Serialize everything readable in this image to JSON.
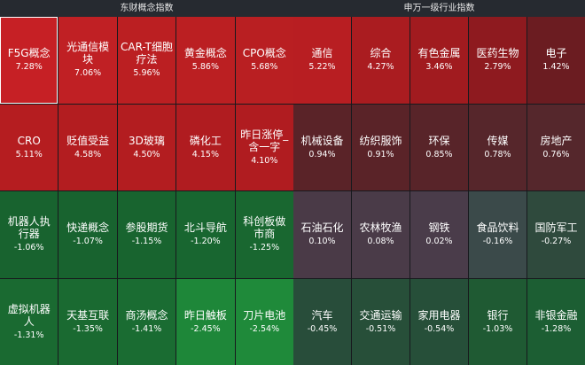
{
  "left_panel": {
    "title": "东财概念指数",
    "tiles": [
      {
        "name": "F5G概念",
        "pct": "7.28%",
        "color": "#c62025",
        "selected": true
      },
      {
        "name": "光通信模块",
        "pct": "7.06%",
        "color": "#c02024"
      },
      {
        "name": "CAR-T细胞疗法",
        "pct": "5.96%",
        "color": "#bb1f22"
      },
      {
        "name": "黄金概念",
        "pct": "5.86%",
        "color": "#bb1f22"
      },
      {
        "name": "CPO概念",
        "pct": "5.68%",
        "color": "#b91f22"
      },
      {
        "name": "CRO",
        "pct": "5.11%",
        "color": "#b51d20"
      },
      {
        "name": "贬值受益",
        "pct": "4.58%",
        "color": "#b31d20"
      },
      {
        "name": "3D玻璃",
        "pct": "4.50%",
        "color": "#b31d20"
      },
      {
        "name": "磷化工",
        "pct": "4.15%",
        "color": "#b01c20"
      },
      {
        "name": "昨日涨停_含一字",
        "pct": "4.10%",
        "color": "#b01c20"
      },
      {
        "name": "机器人执行器",
        "pct": "-1.06%",
        "color": "#18632f"
      },
      {
        "name": "快递概念",
        "pct": "-1.07%",
        "color": "#18632f"
      },
      {
        "name": "参股期货",
        "pct": "-1.15%",
        "color": "#18642f"
      },
      {
        "name": "北斗导航",
        "pct": "-1.20%",
        "color": "#186630"
      },
      {
        "name": "科创板做市商",
        "pct": "-1.25%",
        "color": "#196730"
      },
      {
        "name": "虚拟机器人",
        "pct": "-1.31%",
        "color": "#1a6a31"
      },
      {
        "name": "天基互联",
        "pct": "-1.35%",
        "color": "#1a6a31"
      },
      {
        "name": "商汤概念",
        "pct": "-1.41%",
        "color": "#1a6c32"
      },
      {
        "name": "昨日触板",
        "pct": "-2.45%",
        "color": "#1e8739"
      },
      {
        "name": "刀片电池",
        "pct": "-2.54%",
        "color": "#1f8a3a"
      }
    ]
  },
  "right_panel": {
    "title": "申万一级行业指数",
    "tiles": [
      {
        "name": "通信",
        "pct": "5.22%",
        "color": "#b81e22"
      },
      {
        "name": "综合",
        "pct": "4.27%",
        "color": "#aa1c20"
      },
      {
        "name": "有色金属",
        "pct": "3.46%",
        "color": "#a11b1f"
      },
      {
        "name": "医药生物",
        "pct": "2.79%",
        "color": "#8e1a1f"
      },
      {
        "name": "电子",
        "pct": "1.42%",
        "color": "#6b1c21"
      },
      {
        "name": "机械设备",
        "pct": "0.94%",
        "color": "#5a2328"
      },
      {
        "name": "纺织服饰",
        "pct": "0.91%",
        "color": "#5a2328"
      },
      {
        "name": "环保",
        "pct": "0.85%",
        "color": "#582429"
      },
      {
        "name": "传媒",
        "pct": "0.78%",
        "color": "#56262b"
      },
      {
        "name": "房地产",
        "pct": "0.76%",
        "color": "#55272c"
      },
      {
        "name": "石油石化",
        "pct": "0.10%",
        "color": "#4a3a47"
      },
      {
        "name": "农林牧渔",
        "pct": "0.08%",
        "color": "#4a3b48"
      },
      {
        "name": "钢铁",
        "pct": "0.02%",
        "color": "#4a3c4a"
      },
      {
        "name": "食品饮料",
        "pct": "-0.16%",
        "color": "#3b4a4a"
      },
      {
        "name": "国防军工",
        "pct": "-0.27%",
        "color": "#2f4a3d"
      },
      {
        "name": "汽车",
        "pct": "-0.45%",
        "color": "#284d3a"
      },
      {
        "name": "交通运输",
        "pct": "-0.51%",
        "color": "#274f39"
      },
      {
        "name": "家用电器",
        "pct": "-0.54%",
        "color": "#264f39"
      },
      {
        "name": "银行",
        "pct": "-1.03%",
        "color": "#1f5a33"
      },
      {
        "name": "非银金融",
        "pct": "-1.28%",
        "color": "#1c5e33"
      }
    ]
  }
}
